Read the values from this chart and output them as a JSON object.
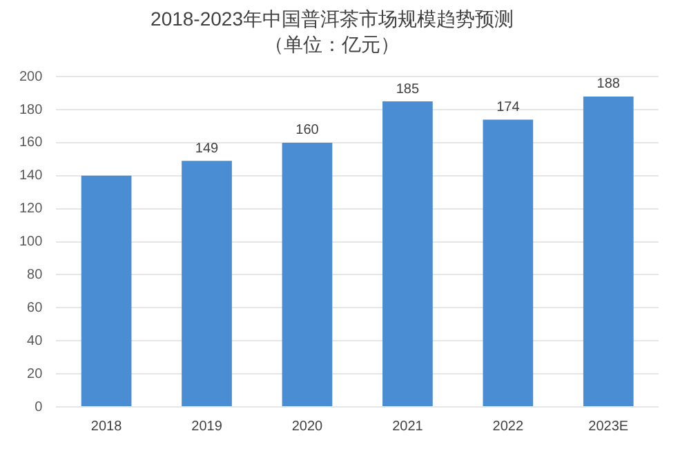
{
  "chart_data": {
    "type": "bar",
    "title": "2018-2023年中国普洱茶市场规模趋势预测",
    "subtitle": "（单位：亿元）",
    "categories": [
      "2018",
      "2019",
      "2020",
      "2021",
      "2022",
      "2023E"
    ],
    "values": [
      140,
      149,
      160,
      185,
      174,
      188
    ],
    "value_labels": [
      null,
      "149",
      "160",
      "185",
      "174",
      "188"
    ],
    "color": "#4a8dd2",
    "ylim": [
      0,
      200
    ],
    "yticks": [
      0,
      20,
      40,
      60,
      80,
      100,
      120,
      140,
      160,
      180,
      200
    ],
    "grid": "y",
    "legend": false
  }
}
